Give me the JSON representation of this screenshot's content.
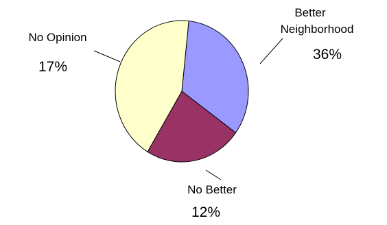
{
  "chart_data": {
    "type": "pie",
    "slices": [
      {
        "label_lines": [
          "Better",
          "Neighborhood"
        ],
        "percent_label": "36%",
        "value": 36,
        "color": "#9999ff"
      },
      {
        "label_lines": [
          "No Better"
        ],
        "percent_label": "12%",
        "value": 12,
        "color": "#993366"
      },
      {
        "label_lines": [
          "No Opinion"
        ],
        "percent_label": "17%",
        "value": 17,
        "color": "#ffffcc"
      }
    ],
    "legend": "none",
    "grid": false
  }
}
